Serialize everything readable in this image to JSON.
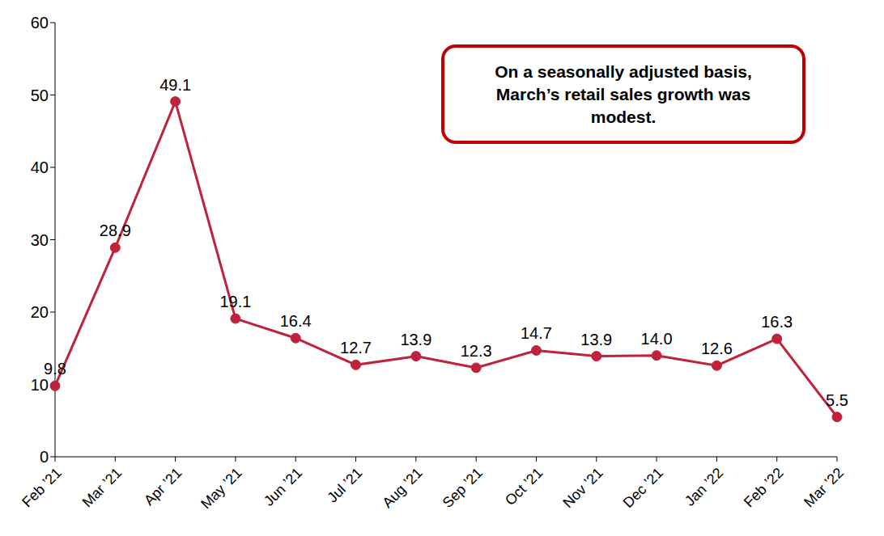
{
  "chart_data": {
    "type": "line",
    "annotation": "On a seasonally adjusted basis, March’s retail sales growth was modest.",
    "categories": [
      "Feb ’21",
      "Mar ’21",
      "Apr ’21",
      "May ’21",
      "Jun ’21",
      "Jul ’21",
      "Aug ’21",
      "Sep ’21",
      "Oct ’21",
      "Nov ’21",
      "Dec ’21",
      "Jan ’22",
      "Feb ’22",
      "Mar ’22"
    ],
    "values": [
      9.8,
      28.9,
      49.1,
      19.1,
      16.4,
      12.7,
      13.9,
      12.3,
      14.7,
      13.9,
      14.0,
      12.6,
      16.3,
      5.5
    ],
    "value_labels": [
      "9.8",
      "28.9",
      "49.1",
      "19.1",
      "16.4",
      "12.7",
      "13.9",
      "12.3",
      "14.7",
      "13.9",
      "14.0",
      "12.6",
      "16.3",
      "5.5"
    ],
    "color": "#c0223b",
    "marker": "circle",
    "ylim": [
      0,
      60
    ],
    "yticks": [
      0,
      10,
      20,
      30,
      40,
      50,
      60
    ],
    "grid": false,
    "data_labels": true
  }
}
